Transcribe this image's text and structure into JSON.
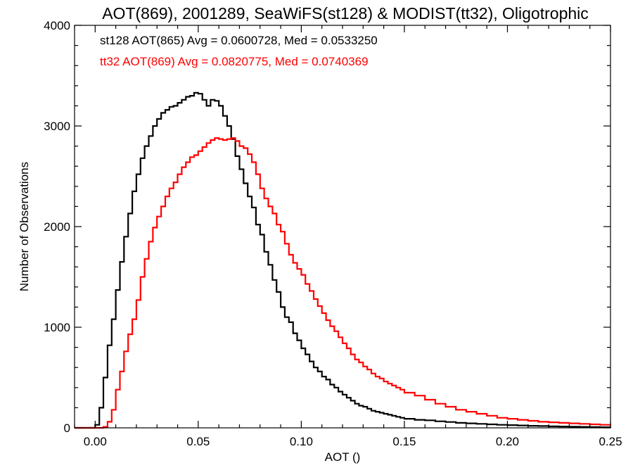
{
  "chart_data": {
    "type": "line",
    "step": true,
    "title": "AOT(869), 2001289, SeaWiFS(st128) & MODIST(tt32), Oligotrophic",
    "xlabel": "AOT ()",
    "ylabel": "Number of Observations",
    "xlim": [
      -0.01,
      0.25
    ],
    "ylim": [
      0,
      4000
    ],
    "xticks": [
      0.0,
      0.05,
      0.1,
      0.15,
      0.2,
      0.25
    ],
    "xtick_labels": [
      "0.00",
      "0.05",
      "0.10",
      "0.15",
      "0.20",
      "0.25"
    ],
    "yticks": [
      0,
      1000,
      2000,
      3000,
      4000
    ],
    "ytick_labels": [
      "0",
      "1000",
      "2000",
      "3000",
      "4000"
    ],
    "grid": false,
    "annotations": [
      {
        "text": "st128 AOT(865) Avg = 0.0600728, Med = 0.0533250",
        "color": "#000000"
      },
      {
        "text": "tt32 AOT(869) Avg = 0.0820775, Med = 0.0740369",
        "color": "#ff0000"
      }
    ],
    "series": [
      {
        "color": "#000000",
        "x": [
          -0.01,
          0.0,
          0.002,
          0.004,
          0.006,
          0.008,
          0.01,
          0.012,
          0.014,
          0.016,
          0.018,
          0.02,
          0.022,
          0.024,
          0.026,
          0.028,
          0.03,
          0.032,
          0.034,
          0.036,
          0.038,
          0.04,
          0.042,
          0.044,
          0.046,
          0.048,
          0.05,
          0.052,
          0.054,
          0.056,
          0.058,
          0.06,
          0.062,
          0.064,
          0.066,
          0.068,
          0.07,
          0.072,
          0.074,
          0.076,
          0.078,
          0.08,
          0.082,
          0.084,
          0.086,
          0.088,
          0.09,
          0.092,
          0.094,
          0.096,
          0.098,
          0.1,
          0.102,
          0.104,
          0.106,
          0.108,
          0.11,
          0.112,
          0.114,
          0.116,
          0.118,
          0.12,
          0.122,
          0.124,
          0.126,
          0.128,
          0.13,
          0.132,
          0.134,
          0.136,
          0.138,
          0.14,
          0.142,
          0.144,
          0.146,
          0.148,
          0.15,
          0.155,
          0.16,
          0.165,
          0.17,
          0.175,
          0.18,
          0.185,
          0.19,
          0.195,
          0.2,
          0.205,
          0.21,
          0.215,
          0.22,
          0.225,
          0.23,
          0.235,
          0.24,
          0.245,
          0.25
        ],
        "y": [
          0,
          30,
          200,
          500,
          820,
          1080,
          1370,
          1650,
          1900,
          2130,
          2350,
          2520,
          2680,
          2800,
          2900,
          3000,
          3070,
          3130,
          3160,
          3190,
          3200,
          3230,
          3260,
          3290,
          3300,
          3330,
          3320,
          3260,
          3200,
          3260,
          3250,
          3200,
          3100,
          3000,
          2870,
          2700,
          2570,
          2430,
          2300,
          2190,
          2020,
          1920,
          1750,
          1620,
          1470,
          1350,
          1200,
          1100,
          1050,
          940,
          870,
          790,
          730,
          660,
          600,
          560,
          510,
          480,
          430,
          400,
          360,
          330,
          300,
          270,
          240,
          220,
          210,
          190,
          170,
          160,
          150,
          140,
          130,
          120,
          110,
          100,
          90,
          80,
          75,
          65,
          58,
          50,
          45,
          40,
          35,
          30,
          27,
          24,
          20,
          18,
          15,
          13,
          11,
          10,
          8,
          6,
          5
        ]
      },
      {
        "color": "#ff0000",
        "x": [
          -0.01,
          0.004,
          0.006,
          0.008,
          0.01,
          0.012,
          0.014,
          0.016,
          0.018,
          0.02,
          0.022,
          0.024,
          0.026,
          0.028,
          0.03,
          0.032,
          0.034,
          0.036,
          0.038,
          0.04,
          0.042,
          0.044,
          0.046,
          0.048,
          0.05,
          0.052,
          0.054,
          0.056,
          0.058,
          0.06,
          0.062,
          0.064,
          0.066,
          0.068,
          0.07,
          0.072,
          0.074,
          0.076,
          0.078,
          0.08,
          0.082,
          0.084,
          0.086,
          0.088,
          0.09,
          0.092,
          0.094,
          0.096,
          0.098,
          0.1,
          0.102,
          0.104,
          0.106,
          0.108,
          0.11,
          0.112,
          0.114,
          0.116,
          0.118,
          0.12,
          0.122,
          0.124,
          0.126,
          0.128,
          0.13,
          0.132,
          0.134,
          0.136,
          0.138,
          0.14,
          0.142,
          0.144,
          0.146,
          0.148,
          0.15,
          0.155,
          0.16,
          0.165,
          0.17,
          0.175,
          0.18,
          0.185,
          0.19,
          0.195,
          0.2,
          0.205,
          0.21,
          0.215,
          0.22,
          0.225,
          0.23,
          0.235,
          0.24,
          0.245,
          0.25
        ],
        "y": [
          0,
          10,
          60,
          180,
          380,
          560,
          760,
          930,
          1080,
          1270,
          1500,
          1680,
          1850,
          1990,
          2100,
          2200,
          2300,
          2380,
          2440,
          2520,
          2590,
          2640,
          2690,
          2710,
          2750,
          2790,
          2830,
          2860,
          2880,
          2870,
          2860,
          2870,
          2880,
          2850,
          2800,
          2780,
          2720,
          2640,
          2520,
          2380,
          2280,
          2200,
          2130,
          2020,
          1950,
          1830,
          1720,
          1640,
          1580,
          1520,
          1430,
          1360,
          1280,
          1210,
          1140,
          1070,
          1010,
          960,
          900,
          840,
          790,
          730,
          680,
          650,
          610,
          580,
          540,
          510,
          490,
          460,
          440,
          420,
          400,
          380,
          350,
          320,
          280,
          240,
          210,
          180,
          160,
          140,
          120,
          100,
          90,
          80,
          70,
          60,
          55,
          50,
          45,
          40,
          35,
          30,
          25
        ]
      }
    ]
  }
}
